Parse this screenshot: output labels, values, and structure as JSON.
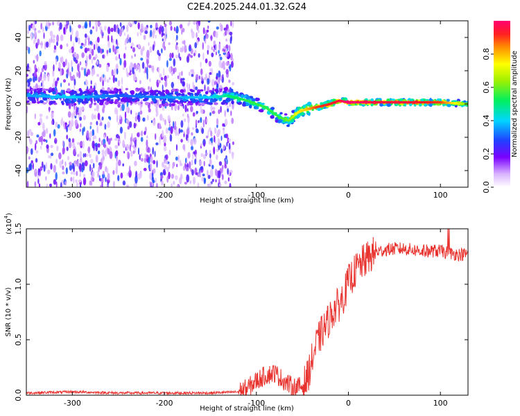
{
  "title": "C2E4.2025.244.01.32.G24",
  "chart_data": [
    {
      "type": "heatmap",
      "name": "spectrogram",
      "xlabel": "Height of straight line (km)",
      "ylabel": "Frequency (Hz)",
      "xlim": [
        -350,
        130
      ],
      "ylim": [
        -50,
        50
      ],
      "xticks": [
        "-300",
        "-200",
        "-100",
        "0",
        "100"
      ],
      "yticks": [
        "-40",
        "-20",
        "0",
        "20",
        "40"
      ],
      "colorbar": {
        "label": "Normalized spectral amplitude",
        "range": [
          0.0,
          1.0
        ],
        "ticks": [
          "0.0",
          "0.2",
          "0.4",
          "0.6",
          "0.8"
        ]
      },
      "trace": {
        "x": [
          -350,
          -300,
          -250,
          -200,
          -150,
          -130,
          -110,
          -90,
          -75,
          -65,
          -55,
          -45,
          -35,
          -20,
          -10,
          0,
          30,
          60,
          100,
          130
        ],
        "frequency": [
          5,
          4,
          5,
          4,
          4,
          5,
          2,
          -2,
          -8,
          -10,
          -5,
          -3,
          -2,
          0,
          2,
          1,
          1,
          1,
          1,
          0
        ],
        "amplitude": [
          0.35,
          0.4,
          0.3,
          0.35,
          0.4,
          0.5,
          0.55,
          0.55,
          0.55,
          0.6,
          0.75,
          0.8,
          0.9,
          0.92,
          0.95,
          1.0,
          0.95,
          0.95,
          0.9,
          0.6
        ]
      },
      "noise_region_x": [
        -350,
        -125
      ]
    },
    {
      "type": "line",
      "name": "snr",
      "xlabel": "Height of straight line (km)",
      "ylabel": "SNR (10 * v/v)",
      "scale_label": "(x10",
      "scale_exponent": "4",
      "scale_suffix": ")",
      "xlim": [
        -350,
        130
      ],
      "ylim": [
        0.0,
        1.5
      ],
      "xticks": [
        "-300",
        "-200",
        "-100",
        "0",
        "100"
      ],
      "yticks": [
        "0.0",
        "0.5",
        "1.0",
        "1.5"
      ],
      "color": "#e8322e",
      "series": [
        {
          "name": "SNR",
          "x": [
            -350,
            -300,
            -250,
            -200,
            -150,
            -120,
            -110,
            -100,
            -90,
            -80,
            -70,
            -60,
            -50,
            -45,
            -40,
            -35,
            -30,
            -25,
            -20,
            -15,
            -10,
            -5,
            0,
            10,
            20,
            30,
            40,
            50,
            60,
            70,
            80,
            90,
            100,
            110,
            120,
            130
          ],
          "y": [
            0.02,
            0.03,
            0.02,
            0.02,
            0.02,
            0.03,
            0.06,
            0.13,
            0.18,
            0.2,
            0.13,
            0.07,
            0.08,
            0.15,
            0.3,
            0.45,
            0.55,
            0.62,
            0.7,
            0.78,
            0.82,
            0.9,
            1.02,
            1.15,
            1.23,
            1.29,
            1.31,
            1.32,
            1.32,
            1.31,
            1.3,
            1.3,
            1.3,
            1.28,
            1.27,
            1.27
          ]
        }
      ]
    }
  ]
}
